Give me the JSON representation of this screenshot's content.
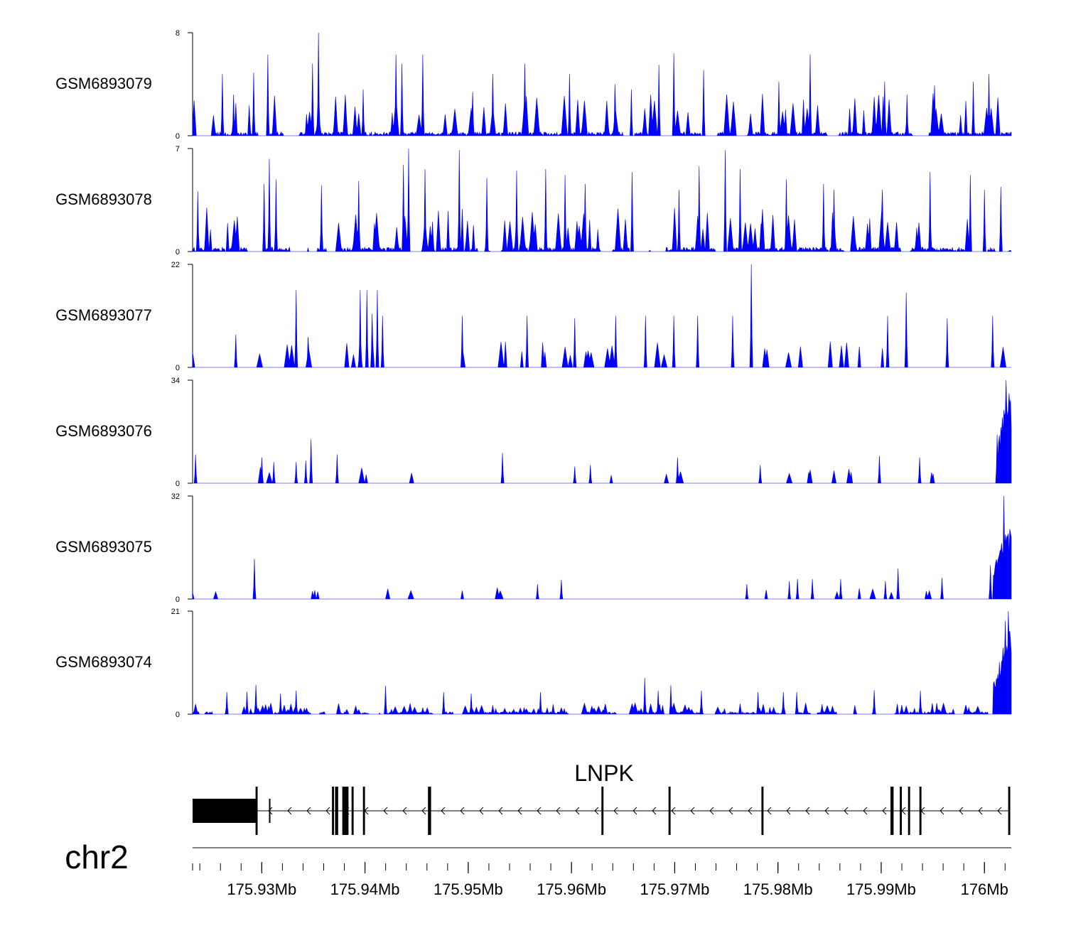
{
  "chart_data": {
    "type": "area",
    "title": "",
    "chromosome": "chr2",
    "region": {
      "start": 175923300,
      "end": 176002600
    },
    "fill_color": "#0000ff",
    "tracks": [
      {
        "name": "GSM6893079",
        "ymin": 0,
        "ymax": 8,
        "ymax_label": "8",
        "ymin_label": "0",
        "profile": {
          "seed": 79,
          "base": 0.3,
          "peak_prob": 0.07,
          "peak_min": 1.5,
          "peak_max": 3.3,
          "gap_prob": 0.02,
          "rise": null
        },
        "peaks": [
          [
            175926200,
            4.8
          ],
          [
            175927300,
            3.2
          ],
          [
            175929200,
            4.9
          ],
          [
            175930600,
            6.3
          ],
          [
            175934900,
            5.6
          ],
          [
            175935500,
            8
          ],
          [
            175939800,
            3.6
          ],
          [
            175943000,
            6.3
          ],
          [
            175943600,
            5.6
          ],
          [
            175945600,
            6.3
          ],
          [
            175950400,
            3.4
          ],
          [
            175952400,
            4.8
          ],
          [
            175955500,
            5.6
          ],
          [
            175959800,
            4.8
          ],
          [
            175964200,
            4.0
          ],
          [
            175965800,
            3.6
          ],
          [
            175968500,
            5.5
          ],
          [
            175969900,
            6.4
          ],
          [
            175972800,
            5.1
          ],
          [
            175980100,
            4.2
          ],
          [
            175983100,
            6.3
          ],
          [
            175990300,
            4.2
          ],
          [
            175992500,
            3.2
          ],
          [
            175995200,
            3.9
          ],
          [
            175998900,
            4.2
          ],
          [
            176000400,
            4.8
          ]
        ]
      },
      {
        "name": "GSM6893078",
        "ymin": 0,
        "ymax": 7,
        "ymax_label": "7",
        "ymin_label": "0",
        "profile": {
          "seed": 78,
          "base": 0.3,
          "peak_prob": 0.08,
          "peak_min": 1.4,
          "peak_max": 3.0,
          "gap_prob": 0.02,
          "rise": null
        },
        "peaks": [
          [
            175923800,
            4.1
          ],
          [
            175930200,
            4.6
          ],
          [
            175930700,
            6.3
          ],
          [
            175931400,
            4.9
          ],
          [
            175935800,
            4.5
          ],
          [
            175939400,
            4.8
          ],
          [
            175943700,
            5.9
          ],
          [
            175944200,
            7
          ],
          [
            175945800,
            5.6
          ],
          [
            175949100,
            6.9
          ],
          [
            175951800,
            5.0
          ],
          [
            175954700,
            5.5
          ],
          [
            175957500,
            5.6
          ],
          [
            175959400,
            5.2
          ],
          [
            175961300,
            4.6
          ],
          [
            175965900,
            5.4
          ],
          [
            175970400,
            4.2
          ],
          [
            175972400,
            5.8
          ],
          [
            175974900,
            6.9
          ],
          [
            175976300,
            5.6
          ],
          [
            175980800,
            4.9
          ],
          [
            175984400,
            4.6
          ],
          [
            175985400,
            4.2
          ],
          [
            175990100,
            4.2
          ],
          [
            175994700,
            5.4
          ],
          [
            175998600,
            5.2
          ],
          [
            176000000,
            4.2
          ],
          [
            176001600,
            4.4
          ]
        ]
      },
      {
        "name": "GSM6893077",
        "ymin": 0,
        "ymax": 22,
        "ymax_label": "22",
        "ymin_label": "0",
        "profile": {
          "seed": 77,
          "base": 0.0,
          "peak_prob": 0.13,
          "peak_min": 2.5,
          "peak_max": 5.5,
          "gap_prob": 0.2,
          "rise": null
        },
        "peaks": [
          [
            175927500,
            7.0
          ],
          [
            175933300,
            16.5
          ],
          [
            175934500,
            6.5
          ],
          [
            175939500,
            16.5
          ],
          [
            175940200,
            16.5
          ],
          [
            175940700,
            11.5
          ],
          [
            175941200,
            16.5
          ],
          [
            175941700,
            11.0
          ],
          [
            175949400,
            11.0
          ],
          [
            175955700,
            11.0
          ],
          [
            175960300,
            10.5
          ],
          [
            175964300,
            11.0
          ],
          [
            175967200,
            11.0
          ],
          [
            175969900,
            11.0
          ],
          [
            175972200,
            11.0
          ],
          [
            175975600,
            11.0
          ],
          [
            175977400,
            22
          ],
          [
            175990600,
            11.0
          ],
          [
            175992400,
            16.0
          ],
          [
            175996400,
            10.5
          ],
          [
            176000800,
            11.0
          ]
        ]
      },
      {
        "name": "GSM6893076",
        "ymin": 0,
        "ymax": 34,
        "ymax_label": "34",
        "ymin_label": "0",
        "profile": {
          "seed": 76,
          "base": 0.0,
          "peak_prob": 0.09,
          "peak_min": 2.5,
          "peak_max": 5.5,
          "gap_prob": 0.28,
          "rise": {
            "start": 176001200,
            "peak": 176002100,
            "level": 24
          }
        },
        "peaks": [
          [
            175923600,
            9.5
          ],
          [
            175930000,
            8.5
          ],
          [
            175931200,
            7.0
          ],
          [
            175933300,
            7.0
          ],
          [
            175934300,
            7.5
          ],
          [
            175934800,
            14.5
          ],
          [
            175937300,
            9.5
          ],
          [
            175953300,
            10.0
          ],
          [
            175960300,
            5.5
          ],
          [
            175961800,
            6.0
          ],
          [
            175970300,
            8.5
          ],
          [
            175978300,
            6.0
          ],
          [
            175989800,
            9.0
          ],
          [
            175993700,
            8.5
          ],
          [
            176001200,
            16
          ],
          [
            176002100,
            34
          ]
        ]
      },
      {
        "name": "GSM6893075",
        "ymin": 0,
        "ymax": 32,
        "ymax_label": "32",
        "ymin_label": "0",
        "profile": {
          "seed": 75,
          "base": 0.0,
          "peak_prob": 0.06,
          "peak_min": 2.0,
          "peak_max": 4.0,
          "gap_prob": 0.25,
          "rise": {
            "start": 176000800,
            "peak": 176001900,
            "level": 18
          }
        },
        "peaks": [
          [
            175929300,
            12.5
          ],
          [
            175956700,
            4.6
          ],
          [
            175959000,
            6.0
          ],
          [
            175977000,
            4.6
          ],
          [
            175981100,
            5.5
          ],
          [
            175981900,
            6.2
          ],
          [
            175983300,
            6.2
          ],
          [
            175986100,
            6.2
          ],
          [
            175990400,
            5.6
          ],
          [
            175991600,
            9.5
          ],
          [
            175995900,
            6.6
          ],
          [
            176000600,
            10.5
          ],
          [
            176001900,
            32
          ],
          [
            176002300,
            20
          ]
        ]
      },
      {
        "name": "GSM6893074",
        "ymin": 0,
        "ymax": 21,
        "ymax_label": "21",
        "ymin_label": "0",
        "profile": {
          "seed": 74,
          "base": 0.5,
          "peak_prob": 0.15,
          "peak_min": 0.8,
          "peak_max": 2.3,
          "gap_prob": 0.04,
          "rise": {
            "start": 176000800,
            "peak": 176002300,
            "level": 14
          }
        },
        "peaks": [
          [
            175926600,
            4.5
          ],
          [
            175928600,
            4.6
          ],
          [
            175929400,
            6.0
          ],
          [
            175931800,
            4.2
          ],
          [
            175933300,
            4.8
          ],
          [
            175942000,
            5.8
          ],
          [
            175947600,
            4.5
          ],
          [
            175950300,
            4.2
          ],
          [
            175957000,
            4.5
          ],
          [
            175967100,
            7.4
          ],
          [
            175968400,
            4.8
          ],
          [
            175969600,
            5.9
          ],
          [
            175972600,
            4.8
          ],
          [
            175978100,
            4.5
          ],
          [
            175980500,
            4.5
          ],
          [
            175981800,
            4.5
          ],
          [
            175989300,
            4.9
          ],
          [
            175993800,
            4.8
          ],
          [
            176002000,
            19
          ],
          [
            176002300,
            21
          ]
        ]
      }
    ],
    "gene": {
      "name": "LNPK",
      "strand": "-",
      "utr": [
        [
          175923300,
          175929500
        ]
      ],
      "exons": [
        [
          175929400,
          175929600
        ],
        [
          175936800,
          175937000
        ],
        [
          175937100,
          175937400
        ],
        [
          175937800,
          175938000
        ],
        [
          175938000,
          175938400
        ],
        [
          175938700,
          175938900
        ],
        [
          175939800,
          175940000
        ],
        [
          175946100,
          175946400
        ],
        [
          175962900,
          175963100
        ],
        [
          175969400,
          175969600
        ],
        [
          175978400,
          175978600
        ],
        [
          175990900,
          175991200
        ],
        [
          175991800,
          175992000
        ],
        [
          175992600,
          175992800
        ],
        [
          175993700,
          175993900
        ],
        [
          176002300,
          176002500
        ]
      ],
      "thin_exons": [
        [
          175930700,
          175930800
        ]
      ]
    },
    "x_axis": {
      "tick_labels": [
        "175.93Mb",
        "175.94Mb",
        "175.95Mb",
        "175.96Mb",
        "175.97Mb",
        "175.98Mb",
        "175.99Mb",
        "176Mb"
      ],
      "tick_values": [
        175930000,
        175940000,
        175950000,
        175960000,
        175970000,
        175980000,
        175990000,
        176000000
      ],
      "minor_tick_step": 2000
    }
  }
}
